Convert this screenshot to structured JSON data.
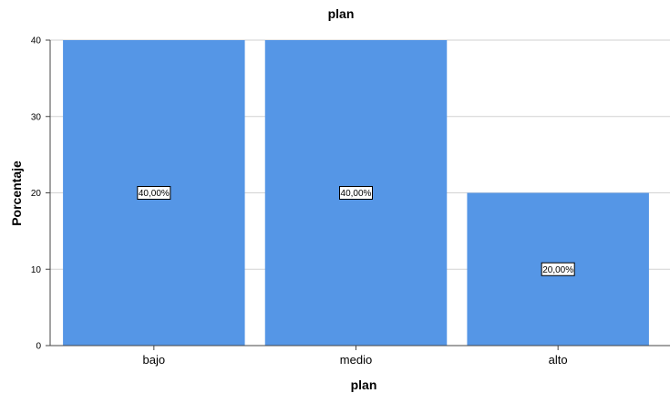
{
  "chart_data": {
    "type": "bar",
    "title": "plan",
    "xlabel": "plan",
    "ylabel": "Porcentaje",
    "categories": [
      "bajo",
      "medio",
      "alto"
    ],
    "values": [
      40,
      40,
      20
    ],
    "data_labels": [
      "40,00%",
      "40,00%",
      "20,00%"
    ],
    "ylim": [
      0,
      40
    ],
    "yticks": [
      0,
      10,
      20,
      30,
      40
    ],
    "grid": true,
    "bar_color": "#5596e6"
  }
}
